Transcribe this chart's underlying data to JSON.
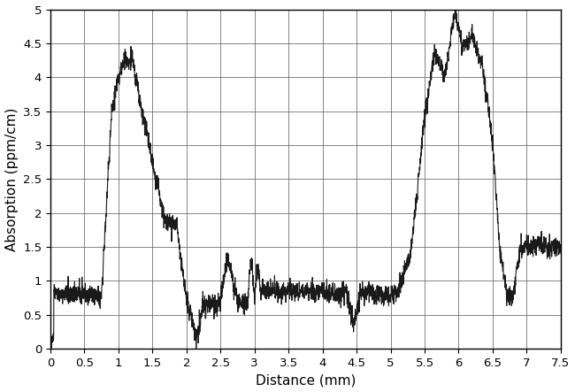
{
  "xlabel": "Distance (mm)",
  "ylabel": "Absorption (ppm/cm)",
  "xlim": [
    0,
    7.5
  ],
  "ylim": [
    0,
    5
  ],
  "xticks": [
    0,
    0.5,
    1,
    1.5,
    2,
    2.5,
    3,
    3.5,
    4,
    4.5,
    5,
    5.5,
    6,
    6.5,
    7,
    7.5
  ],
  "yticks": [
    0,
    0.5,
    1,
    1.5,
    2,
    2.5,
    3,
    3.5,
    4,
    4.5,
    5
  ],
  "line_color": "#1a1a1a",
  "line_width": 0.8,
  "background_color": "#ffffff",
  "grid_color": "#777777",
  "xlabel_fontsize": 11,
  "ylabel_fontsize": 11,
  "tick_fontsize": 9.5
}
